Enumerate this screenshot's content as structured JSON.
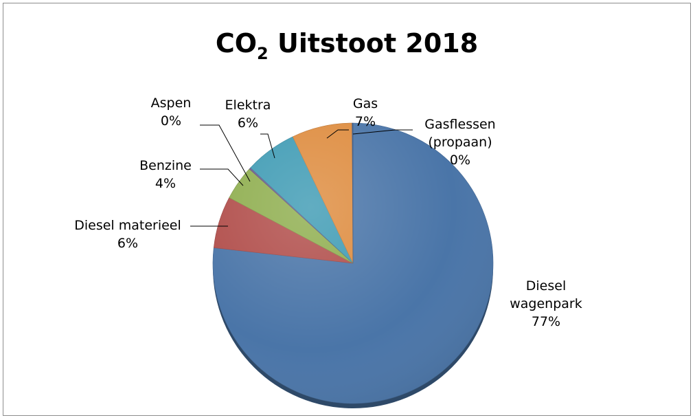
{
  "chart_data": {
    "type": "pie",
    "title": {
      "prefix": "CO",
      "subscript": "2",
      "suffix": " Uitstoot  2018"
    },
    "start_angle_deg": 0,
    "direction": "clockwise",
    "legend": "none",
    "slices": [
      {
        "name": "Diesel wagenpark",
        "label_lines": [
          "Diesel",
          "wagenpark"
        ],
        "value": 77,
        "value_label": "77%",
        "color": "#4A75A8"
      },
      {
        "name": "Diesel materieel",
        "label_lines": [
          "Diesel materieel"
        ],
        "value": 6,
        "value_label": "6%",
        "color": "#B14E4B"
      },
      {
        "name": "Benzine",
        "label_lines": [
          "Benzine"
        ],
        "value": 4,
        "value_label": "4%",
        "color": "#8FAE4F"
      },
      {
        "name": "Aspen",
        "label_lines": [
          "Aspen"
        ],
        "value": 0.2,
        "value_label": "0%",
        "color": "#6B5A8E"
      },
      {
        "name": "Elektra",
        "label_lines": [
          "Elektra"
        ],
        "value": 6,
        "value_label": "6%",
        "color": "#3F9BB4"
      },
      {
        "name": "Gas",
        "label_lines": [
          "Gas"
        ],
        "value": 7,
        "value_label": "7%",
        "color": "#DE8C3F"
      },
      {
        "name": "Gasflessen (propaan)",
        "label_lines": [
          "Gasflessen",
          "(propaan)"
        ],
        "value": 0.1,
        "value_label": "0%",
        "color": "#3B5D8E"
      }
    ]
  }
}
